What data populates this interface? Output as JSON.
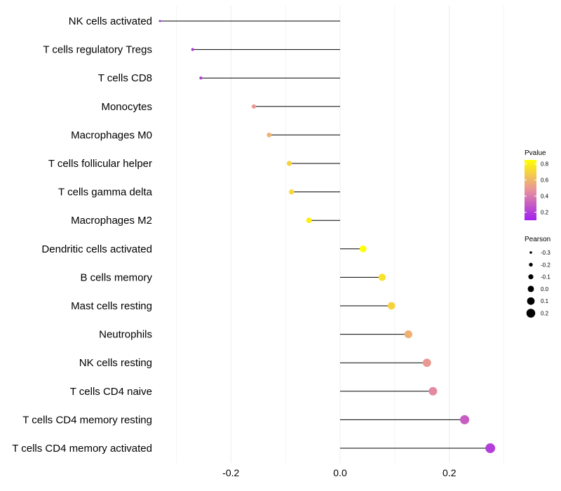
{
  "chart_data": {
    "type": "lollipop",
    "title": "",
    "xlabel": "",
    "ylabel": "",
    "xlim": [
      -0.33,
      0.33
    ],
    "x_ticks": [
      -0.2,
      0.0,
      0.2
    ],
    "x_tick_labels": [
      "-0.2",
      "0.0",
      "0.2"
    ],
    "grid": true,
    "categories": [
      "NK cells activated",
      "T cells regulatory  Tregs",
      "T cells CD8",
      "Monocytes",
      "Macrophages M0",
      "T cells follicular helper",
      "T cells gamma delta",
      "Macrophages M2",
      "Dendritic cells activated",
      "B cells memory",
      "Mast cells resting",
      "Neutrophils",
      "NK cells resting",
      "T cells CD4 naive",
      "T cells CD4 memory resting",
      "T cells CD4 memory activated"
    ],
    "pearson": [
      -0.33,
      -0.27,
      -0.255,
      -0.158,
      -0.13,
      -0.093,
      -0.089,
      -0.057,
      0.042,
      0.077,
      0.094,
      0.125,
      0.159,
      0.17,
      0.228,
      0.275
    ],
    "pvalue": [
      0.12,
      0.18,
      0.2,
      0.5,
      0.58,
      0.7,
      0.72,
      0.8,
      0.85,
      0.75,
      0.7,
      0.58,
      0.5,
      0.45,
      0.3,
      0.2
    ],
    "legend": {
      "pvalue_title": "Pvalue",
      "pvalue_ticks": [
        0.2,
        0.4,
        0.6,
        0.8
      ],
      "pvalue_tick_labels": [
        "0.2",
        "0.4",
        "0.6",
        "0.8"
      ],
      "pvalue_range": [
        0.1,
        0.85
      ],
      "pearson_title": "Pearson",
      "pearson_values": [
        -0.3,
        -0.2,
        -0.1,
        0.0,
        0.1,
        0.2
      ],
      "pearson_labels": [
        "-0.3",
        "-0.2",
        "-0.1",
        "0.0",
        "0.1",
        "0.2"
      ],
      "placement": "right"
    },
    "colors": {
      "low": "#a020f0",
      "mid": "#e8929c",
      "high": "#ffff00",
      "stem": "#000000",
      "grid": "#ececec"
    }
  }
}
